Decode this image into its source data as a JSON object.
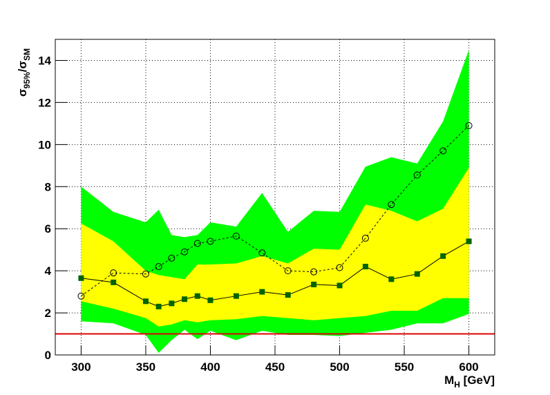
{
  "chart_data": {
    "type": "line",
    "xlabel": {
      "main": "M",
      "sub": "H",
      "rest": " [GeV]"
    },
    "ylabel": [
      {
        "text": "σ",
        "sub": "95%"
      },
      {
        "text": "/σ",
        "sub": "SM"
      }
    ],
    "x": [
      300,
      325,
      350,
      360,
      370,
      380,
      390,
      400,
      420,
      440,
      460,
      480,
      500,
      520,
      540,
      560,
      580,
      600
    ],
    "bands": [
      {
        "color": "#00ff00",
        "upper": [
          8.0,
          6.8,
          6.3,
          6.9,
          5.7,
          5.6,
          5.7,
          6.3,
          6.1,
          7.7,
          5.85,
          6.85,
          6.8,
          8.95,
          9.4,
          9.1,
          11.1,
          14.5
        ],
        "lower": [
          1.6,
          1.5,
          0.95,
          0.1,
          0.7,
          1.2,
          0.75,
          1.15,
          0.7,
          1.15,
          0.95,
          0.95,
          0.9,
          1.05,
          1.2,
          1.5,
          1.5,
          1.95
        ]
      },
      {
        "color": "#ffff00",
        "upper": [
          6.25,
          5.4,
          4.0,
          3.8,
          3.7,
          3.6,
          4.3,
          4.3,
          4.35,
          4.7,
          4.35,
          5.05,
          5.0,
          7.15,
          6.85,
          6.35,
          6.95,
          8.9
        ],
        "lower": [
          2.55,
          2.2,
          1.75,
          1.35,
          1.45,
          1.65,
          1.55,
          1.65,
          1.7,
          1.85,
          1.75,
          1.65,
          1.75,
          1.85,
          2.1,
          2.1,
          2.7,
          2.7
        ]
      }
    ],
    "series": [
      {
        "color": "#000000",
        "dashed": false,
        "marker": "square",
        "marker_color": "#006400",
        "values": [
          3.65,
          3.45,
          2.55,
          2.3,
          2.45,
          2.65,
          2.8,
          2.6,
          2.8,
          3.0,
          2.85,
          3.35,
          3.3,
          4.2,
          3.6,
          3.85,
          4.7,
          5.4
        ]
      },
      {
        "color": "#000000",
        "dashed": true,
        "marker": "open-circle",
        "marker_color": "#000000",
        "values": [
          2.8,
          3.9,
          3.85,
          4.2,
          4.6,
          4.9,
          5.3,
          5.4,
          5.65,
          4.85,
          4.0,
          3.95,
          4.15,
          5.55,
          7.15,
          8.55,
          9.7,
          10.9
        ]
      }
    ],
    "reference_line": {
      "value": 1,
      "color": "#dd0000"
    },
    "xlim": [
      280,
      620
    ],
    "ylim": [
      0,
      15
    ],
    "xticks": [
      300,
      350,
      400,
      450,
      500,
      550,
      600
    ],
    "yticks": [
      0,
      2,
      4,
      6,
      8,
      10,
      12,
      14
    ],
    "grid": true
  }
}
